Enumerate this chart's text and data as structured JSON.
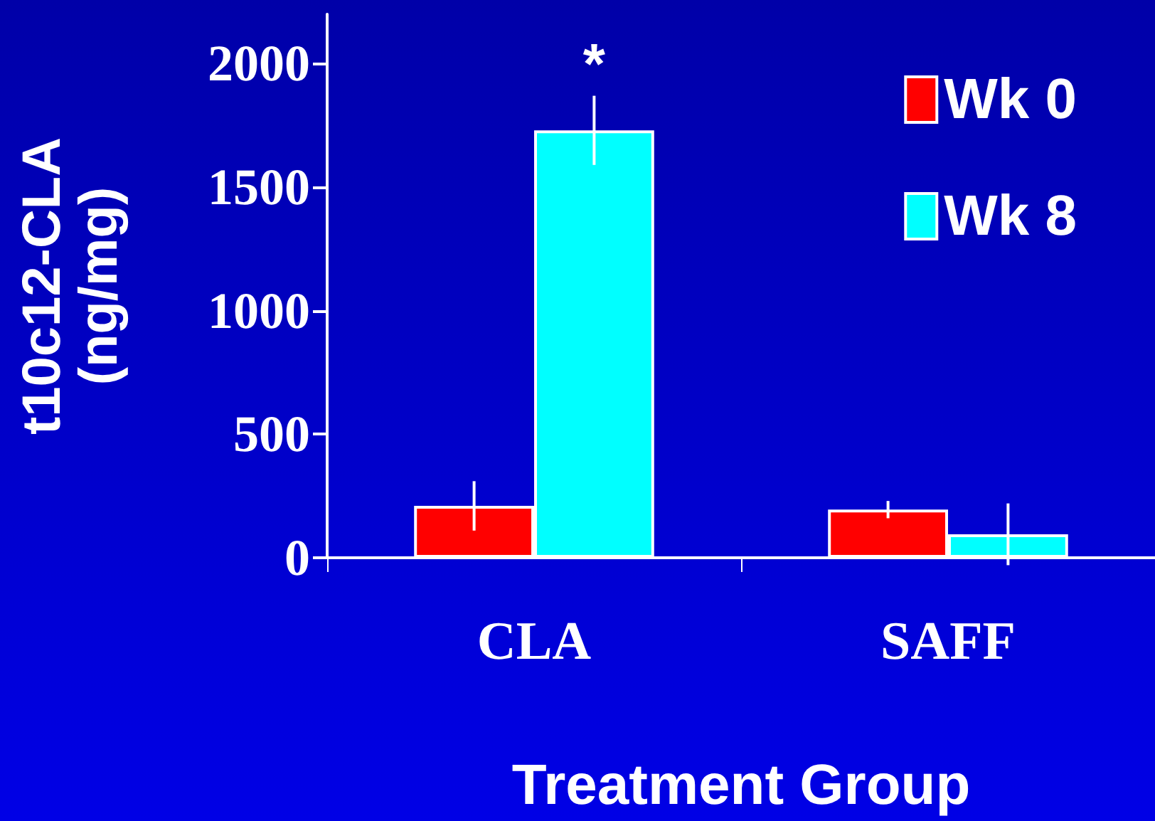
{
  "chart_data": {
    "type": "bar",
    "xlabel": "Treatment Group",
    "ylabel": "t10c12-CLA\n(ng/mg)",
    "categories": [
      "CLA",
      "SAFF"
    ],
    "series": [
      {
        "name": "Wk 0",
        "color": "#ff0000",
        "values": [
          210,
          195
        ],
        "errors": [
          100,
          35
        ]
      },
      {
        "name": "Wk 8",
        "color": "#00ffff",
        "values": [
          1730,
          95
        ],
        "errors": [
          140,
          125
        ]
      }
    ],
    "annotations": [
      "*"
    ],
    "ylim": [
      0,
      2200
    ],
    "yticks": [
      0,
      500,
      1000,
      1500,
      2000
    ],
    "grid": false,
    "legend": "top right"
  }
}
